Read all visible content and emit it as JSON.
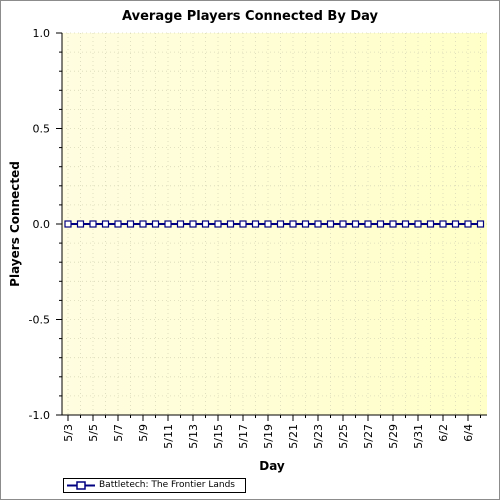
{
  "chart_data": {
    "type": "line",
    "title": "Average Players Connected By Day",
    "xlabel": "Day",
    "ylabel": "Players Connected",
    "ylim": [
      -1.0,
      1.0
    ],
    "y_ticks": [
      "1.0",
      "0.5",
      "0.0",
      "-0.5",
      "-1.0"
    ],
    "y_tick_values": [
      1.0,
      0.5,
      0.0,
      -0.5,
      -1.0
    ],
    "x_tick_labels": [
      "5/3",
      "5/5",
      "5/7",
      "5/9",
      "5/11",
      "5/13",
      "5/15",
      "5/17",
      "5/19",
      "5/21",
      "5/23",
      "5/25",
      "5/27",
      "5/29",
      "5/31",
      "6/2",
      "6/4"
    ],
    "x": [
      "5/3",
      "5/4",
      "5/5",
      "5/6",
      "5/7",
      "5/8",
      "5/9",
      "5/10",
      "5/11",
      "5/12",
      "5/13",
      "5/14",
      "5/15",
      "5/16",
      "5/17",
      "5/18",
      "5/19",
      "5/20",
      "5/21",
      "5/22",
      "5/23",
      "5/24",
      "5/25",
      "5/26",
      "5/27",
      "5/28",
      "5/29",
      "5/30",
      "5/31",
      "6/1",
      "6/2",
      "6/3",
      "6/4",
      "6/5"
    ],
    "series": [
      {
        "name": "Battletech: The Frontier Lands",
        "values": [
          0,
          0,
          0,
          0,
          0,
          0,
          0,
          0,
          0,
          0,
          0,
          0,
          0,
          0,
          0,
          0,
          0,
          0,
          0,
          0,
          0,
          0,
          0,
          0,
          0,
          0,
          0,
          0,
          0,
          0,
          0,
          0,
          0,
          0
        ],
        "color": "#000080"
      }
    ],
    "grid": true,
    "legend_position": "bottom-left",
    "background_gradient": [
      "#fffde0",
      "#ffffc8"
    ]
  }
}
